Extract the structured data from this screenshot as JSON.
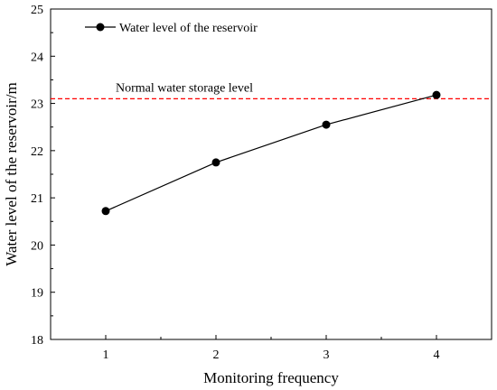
{
  "chart_data": {
    "type": "line",
    "xlabel": "Monitoring frequency",
    "ylabel": "Water level of the reservoir/m",
    "xlim": [
      0.5,
      4.5
    ],
    "ylim": [
      18,
      25
    ],
    "x_ticks": [
      1,
      2,
      3,
      4
    ],
    "y_ticks": [
      18,
      19,
      20,
      21,
      22,
      23,
      24,
      25
    ],
    "grid": false,
    "legend_position": "top-left",
    "series": [
      {
        "name": "Water level of the reservoir",
        "x": [
          1,
          2,
          3,
          4
        ],
        "y": [
          20.72,
          21.75,
          22.55,
          23.18
        ],
        "color": "#000000",
        "marker": "circle"
      }
    ],
    "reference_lines": [
      {
        "label": "Normal water storage level",
        "y": 23.1,
        "color": "#ff0000",
        "style": "dashed"
      }
    ]
  }
}
